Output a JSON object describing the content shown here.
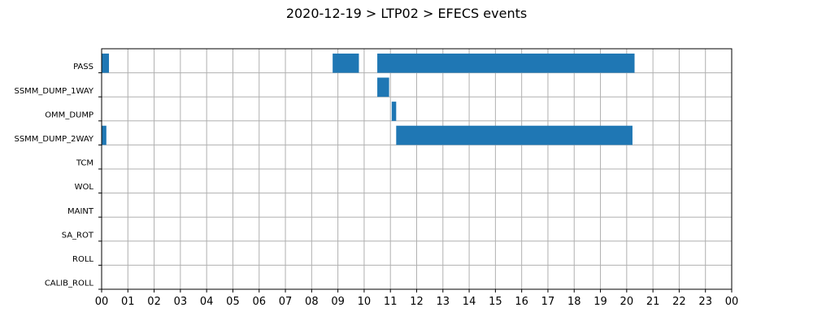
{
  "chart_data": {
    "type": "bar",
    "orientation": "horizontal-timeline",
    "title": "2020-12-19 > LTP02 > EFECS events",
    "xlabel": "",
    "ylabel": "",
    "xlim": [
      0,
      24
    ],
    "x_tick_labels": [
      "00",
      "01",
      "02",
      "03",
      "04",
      "05",
      "06",
      "07",
      "08",
      "09",
      "10",
      "11",
      "12",
      "13",
      "14",
      "15",
      "16",
      "17",
      "18",
      "19",
      "20",
      "21",
      "22",
      "23",
      "00"
    ],
    "categories": [
      "PASS",
      "SSMM_DUMP_1WAY",
      "OMM_DUMP",
      "SSMM_DUMP_2WAY",
      "TCM",
      "WOL",
      "MAINT",
      "SA_ROT",
      "ROLL",
      "CALIB_ROLL"
    ],
    "grid": true,
    "color": "#1f77b4",
    "events": [
      {
        "category": "PASS",
        "start": 0.0,
        "end": 0.28
      },
      {
        "category": "PASS",
        "start": 8.8,
        "end": 9.8
      },
      {
        "category": "PASS",
        "start": 10.5,
        "end": 20.3
      },
      {
        "category": "SSMM_DUMP_1WAY",
        "start": 10.5,
        "end": 10.95
      },
      {
        "category": "OMM_DUMP",
        "start": 11.05,
        "end": 11.22
      },
      {
        "category": "SSMM_DUMP_2WAY",
        "start": 0.0,
        "end": 0.18
      },
      {
        "category": "SSMM_DUMP_2WAY",
        "start": 11.22,
        "end": 20.22
      }
    ]
  }
}
